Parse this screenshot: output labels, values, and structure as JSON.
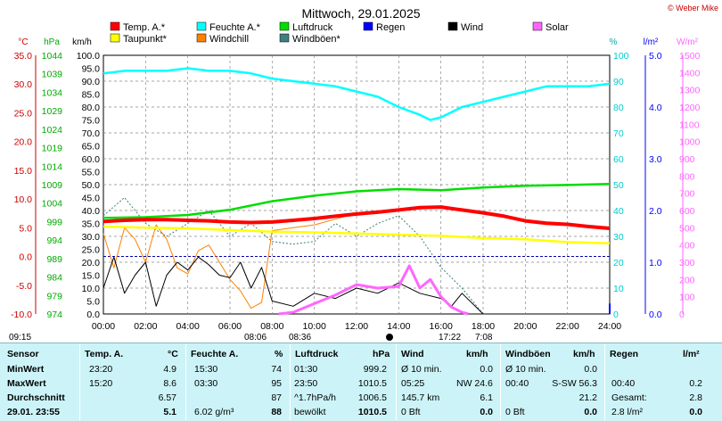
{
  "title": "Mittwoch, 29.01.2025",
  "copyright": "© Weber Mike",
  "colors": {
    "temp": "#ff0000",
    "dew": "#ffff00",
    "hum": "#00ffff",
    "windchill": "#ff8000",
    "pressure": "#00dd00",
    "gust": "#3f7f7f",
    "rain": "#0000ff",
    "wind": "#000000",
    "solar": "#ff66ff",
    "header_bg": "#ccf4f8"
  },
  "legend": [
    {
      "label": "Temp. A.*",
      "color": "#ff0000"
    },
    {
      "label": "Feuchte A.*",
      "color": "#00ffff"
    },
    {
      "label": "Luftdruck",
      "color": "#00dd00"
    },
    {
      "label": "Regen",
      "color": "#0000ff"
    },
    {
      "label": "Wind",
      "color": "#000000"
    },
    {
      "label": "Solar",
      "color": "#ff66ff"
    },
    {
      "label": "Taupunkt*",
      "color": "#ffff00"
    },
    {
      "label": "Windchill",
      "color": "#ff8000"
    },
    {
      "label": "Windböen*",
      "color": "#3f7f7f"
    }
  ],
  "axis_units": {
    "temp": "°C",
    "press": "hPa",
    "wind": "km/h",
    "hum": "%",
    "rain": "l/m²",
    "solar": "W/m²"
  },
  "axis_ticks": {
    "temp": [
      "35.0",
      "30.0",
      "25.0",
      "20.0",
      "15.0",
      "10.0",
      "5.0",
      "0.0",
      "-5.0",
      "-10.0"
    ],
    "press": [
      "1044",
      "1039",
      "1034",
      "1029",
      "1024",
      "1019",
      "1014",
      "1009",
      "1004",
      "999",
      "994",
      "989",
      "984",
      "979",
      "974"
    ],
    "wind": [
      "100.0",
      "95.0",
      "90.0",
      "85.0",
      "80.0",
      "75.0",
      "70.0",
      "65.0",
      "60.0",
      "55.0",
      "50.0",
      "45.0",
      "40.0",
      "35.0",
      "30.0",
      "25.0",
      "20.0",
      "15.0",
      "10.0",
      "5.0",
      "0.0"
    ],
    "hum": [
      "100",
      "90",
      "80",
      "70",
      "60",
      "50",
      "40",
      "30",
      "20",
      "10",
      "0"
    ],
    "rain": [
      "5.0",
      "4.0",
      "3.0",
      "2.0",
      "1.0",
      "0.0"
    ],
    "solar": [
      "1500",
      "1400",
      "1300",
      "1200",
      "1100",
      "1000",
      "900",
      "800",
      "700",
      "600",
      "500",
      "400",
      "300",
      "200",
      "100",
      "0"
    ],
    "time": [
      "00:00",
      "02:00",
      "04:00",
      "06:00",
      "08:00",
      "10:00",
      "12:00",
      "14:00",
      "16:00",
      "18:00",
      "20:00",
      "22:00",
      "24:00"
    ]
  },
  "sun_times": {
    "moonset": "09:15",
    "sunrise_a": "08:06",
    "sunrise_b": "08:36",
    "sunset_a": "17:22",
    "sunset_b": "7:08"
  },
  "chart_data": {
    "type": "line",
    "title": "Mittwoch, 29.01.2025",
    "x_range": [
      "00:00",
      "24:00"
    ],
    "series": [
      {
        "name": "Temp. A.*",
        "unit": "°C",
        "x": [
          0,
          1,
          2,
          3,
          4,
          5,
          6,
          7,
          8,
          9,
          10,
          11,
          12,
          13,
          14,
          15,
          16,
          17,
          18,
          19,
          20,
          21,
          22,
          23,
          24
        ],
        "y": [
          6.1,
          6.3,
          6.4,
          6.4,
          6.3,
          6.2,
          6.0,
          5.9,
          6.0,
          6.3,
          6.6,
          7.0,
          7.4,
          7.7,
          8.1,
          8.5,
          8.6,
          8.1,
          7.6,
          7.0,
          6.2,
          5.8,
          5.6,
          5.2,
          4.9
        ]
      },
      {
        "name": "Taupunkt*",
        "unit": "°C",
        "x": [
          0,
          2,
          4,
          6,
          8,
          10,
          12,
          14,
          16,
          18,
          20,
          22,
          24
        ],
        "y": [
          5.2,
          5.0,
          4.9,
          4.6,
          4.3,
          4.2,
          4.0,
          3.8,
          3.6,
          3.2,
          3.0,
          2.5,
          2.3
        ]
      },
      {
        "name": "Feuchte A.*",
        "unit": "%",
        "x": [
          0,
          1,
          2,
          3,
          4,
          5,
          6,
          7,
          8,
          9,
          10,
          11,
          12,
          13,
          14,
          15,
          15.5,
          16,
          17,
          18,
          19,
          20,
          21,
          22,
          23,
          24
        ],
        "y": [
          93,
          94,
          94,
          94,
          95,
          94,
          94,
          93,
          91,
          90,
          89,
          88,
          86,
          84,
          80,
          77,
          75,
          76,
          80,
          82,
          84,
          86,
          88,
          88,
          88,
          89
        ]
      },
      {
        "name": "Luftdruck",
        "unit": "hPa",
        "x": [
          0,
          2,
          4,
          6,
          8,
          10,
          12,
          14,
          16,
          18,
          20,
          22,
          24
        ],
        "y": [
          1000.0,
          1000.2,
          1000.8,
          1002.2,
          1004.5,
          1006.0,
          1007.2,
          1007.8,
          1007.5,
          1008.2,
          1008.7,
          1008.9,
          1009.2
        ]
      },
      {
        "name": "Windchill",
        "unit": "°C",
        "x": [
          0,
          0.5,
          1,
          1.5,
          2,
          2.5,
          3,
          3.5,
          4,
          4.5,
          5,
          5.5,
          6,
          6.5,
          7,
          7.5,
          8,
          9,
          10,
          11,
          12,
          13,
          14
        ],
        "y": [
          4.0,
          -2.0,
          5.0,
          3.0,
          -1.0,
          5.5,
          3.0,
          -2.0,
          -3.0,
          1.0,
          2.0,
          -1.0,
          -4.0,
          -6.0,
          -9.0,
          -8.0,
          4.5,
          5.0,
          5.5,
          6.5,
          7.5,
          7.6,
          8.0
        ]
      },
      {
        "name": "Windböen*",
        "unit": "km/h",
        "x": [
          0,
          1,
          2,
          3,
          4,
          5,
          6,
          7,
          8,
          9,
          10,
          11,
          12,
          13,
          14,
          15,
          16,
          17,
          18
        ],
        "y": [
          38,
          45,
          35,
          30,
          35,
          40,
          30,
          35,
          28,
          27,
          28,
          35,
          30,
          35,
          38,
          30,
          18,
          10,
          0
        ]
      },
      {
        "name": "Wind",
        "unit": "km/h",
        "x": [
          0,
          0.5,
          1,
          1.5,
          2,
          2.5,
          3,
          3.5,
          4,
          4.5,
          5,
          5.5,
          6,
          6.5,
          7,
          7.5,
          8,
          9,
          10,
          11,
          12,
          13,
          14,
          15,
          16,
          16.5,
          17,
          18
        ],
        "y": [
          10,
          22,
          8,
          15,
          20,
          3,
          15,
          20,
          17,
          22,
          19,
          15,
          14,
          20,
          10,
          18,
          5,
          3,
          8,
          6,
          10,
          8,
          12,
          8,
          6,
          3,
          8,
          0
        ]
      },
      {
        "name": "Solar",
        "unit": "W/m²",
        "x": [
          8.3,
          9,
          10,
          11,
          12,
          13,
          14,
          14.5,
          15,
          15.5,
          16,
          16.5,
          17,
          17.3
        ],
        "y": [
          0,
          10,
          60,
          110,
          170,
          150,
          160,
          280,
          150,
          200,
          100,
          40,
          10,
          0
        ]
      },
      {
        "name": "Regen",
        "unit": "l/m²",
        "x": [
          0,
          24
        ],
        "y": [
          0.0,
          0.2
        ]
      }
    ],
    "xlabel": "",
    "ylabel": "",
    "ylim_temp": [
      -10,
      35
    ],
    "ylim_press": [
      974,
      1044
    ],
    "ylim_wind": [
      0,
      100
    ],
    "ylim_hum": [
      0,
      100
    ],
    "ylim_rain": [
      0,
      5
    ],
    "ylim_solar": [
      0,
      1500
    ],
    "grid": true
  },
  "table": {
    "headers": [
      "Sensor",
      "Temp. A.",
      "°C",
      "Feuchte A.",
      "%",
      "Luftdruck",
      "hPa",
      "Wind",
      "km/h",
      "Windböen",
      "km/h",
      "Regen",
      "l/m²"
    ],
    "rows": [
      {
        "label": "MinWert",
        "temp_time": "23:20",
        "temp": "4.9",
        "hum_time": "15:30",
        "hum": "74",
        "press_time": "01:30",
        "press": "999.2",
        "wind_time": "Ø 10 min.",
        "wind": "0.0",
        "gust_time": "Ø 10 min.",
        "gust": "0.0",
        "rain_time": "",
        "rain": ""
      },
      {
        "label": "MaxWert",
        "temp_time": "15:20",
        "temp": "8.6",
        "hum_time": "03:30",
        "hum": "95",
        "press_time": "23:50",
        "press": "1010.5",
        "wind_time": "05:25",
        "wind_dir": "NW 24.6",
        "wind": "",
        "gust_time": "00:40",
        "gust": "S-SW 56.3",
        "rain_time": "00:40",
        "rain": "0.2"
      },
      {
        "label": "Durchschnitt",
        "temp_time": "",
        "temp": "6.57",
        "hum_time": "",
        "hum": "87",
        "press_time": "^1.7hPa/h",
        "press": "1006.5",
        "wind_time": "145.7 km",
        "wind": "6.1",
        "gust_time": "",
        "gust": "21.2",
        "rain_time": "Gesamt:",
        "rain": "2.8"
      },
      {
        "label": "29.01. 23:55",
        "temp_time": "",
        "temp": "5.1",
        "hum_time": "6.02 g/m³",
        "hum": "88",
        "press_time": "bewölkt",
        "press": "1010.5",
        "wind_time": "0 Bft",
        "wind": "0.0",
        "gust_time": "0 Bft",
        "gust": "0.0",
        "rain_time": "2.8 l/m²",
        "rain": "0.0"
      }
    ]
  }
}
